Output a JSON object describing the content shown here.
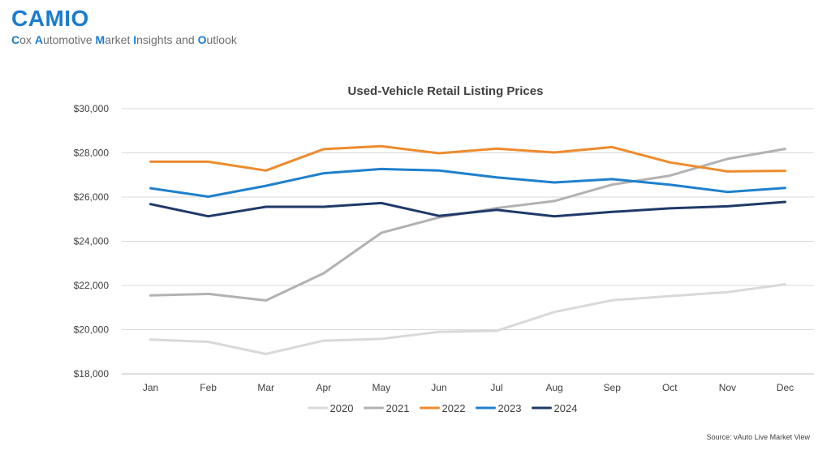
{
  "brand": {
    "title": "CAMIO",
    "subtitle_parts": [
      {
        "text": "C",
        "highlight": true
      },
      {
        "text": "ox ",
        "highlight": false
      },
      {
        "text": "A",
        "highlight": true
      },
      {
        "text": "utomotive ",
        "highlight": false
      },
      {
        "text": "M",
        "highlight": true
      },
      {
        "text": "arket ",
        "highlight": false
      },
      {
        "text": "I",
        "highlight": true
      },
      {
        "text": "nsights and ",
        "highlight": false
      },
      {
        "text": "O",
        "highlight": true
      },
      {
        "text": "utlook",
        "highlight": false
      }
    ],
    "accent_color": "#1a7ccf"
  },
  "source": "Source: vAuto Live Market View",
  "chart_data": {
    "type": "line",
    "title": "Used-Vehicle Retail Listing Prices",
    "xlabel": "",
    "ylabel": "",
    "categories": [
      "Jan",
      "Feb",
      "Mar",
      "Apr",
      "May",
      "Jun",
      "Jul",
      "Aug",
      "Sep",
      "Oct",
      "Nov",
      "Dec"
    ],
    "ylim": [
      18000,
      30000
    ],
    "yticks": [
      18000,
      20000,
      22000,
      24000,
      26000,
      28000,
      30000
    ],
    "ytick_labels": [
      "$18,000",
      "$20,000",
      "$22,000",
      "$24,000",
      "$26,000",
      "$28,000",
      "$30,000"
    ],
    "grid": true,
    "legend_position": "bottom",
    "series": [
      {
        "name": "2020",
        "color": "#d9d9d9",
        "values": [
          19550,
          19450,
          18900,
          19500,
          19580,
          19900,
          19950,
          20800,
          21330,
          21520,
          21700,
          22050
        ]
      },
      {
        "name": "2021",
        "color": "#b2b2b2",
        "values": [
          21550,
          21620,
          21320,
          22550,
          24380,
          25080,
          25500,
          25820,
          26560,
          26970,
          27730,
          28180
        ]
      },
      {
        "name": "2022",
        "color": "#ed8b2e",
        "values": [
          27600,
          27600,
          27200,
          28170,
          28300,
          27980,
          28190,
          28020,
          28260,
          27570,
          27160,
          27190
        ]
      },
      {
        "name": "2023",
        "color": "#1f80cc",
        "values": [
          26400,
          26020,
          26510,
          27080,
          27270,
          27200,
          26890,
          26660,
          26810,
          26560,
          26230,
          26410
        ]
      },
      {
        "name": "2024",
        "color": "#1f3a68",
        "values": [
          25680,
          25130,
          25560,
          25560,
          25730,
          25150,
          25420,
          25130,
          25330,
          25490,
          25580,
          25780
        ]
      }
    ]
  }
}
